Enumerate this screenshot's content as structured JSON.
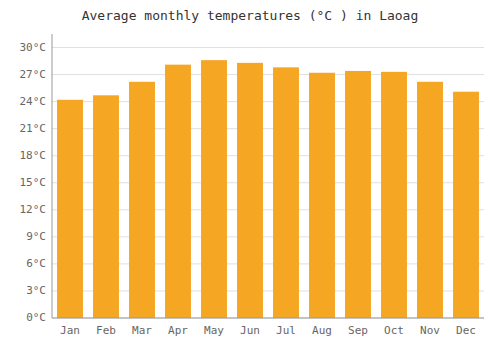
{
  "chart_data": {
    "type": "bar",
    "title": "Average monthly temperatures (°C ) in Laoag",
    "categories": [
      "Jan",
      "Feb",
      "Mar",
      "Apr",
      "May",
      "Jun",
      "Jul",
      "Aug",
      "Sep",
      "Oct",
      "Nov",
      "Dec"
    ],
    "values": [
      24.2,
      24.7,
      26.2,
      28.1,
      28.6,
      28.3,
      27.8,
      27.2,
      27.4,
      27.3,
      26.2,
      25.1
    ],
    "color": "#F5A623",
    "ylim": [
      0,
      31.5
    ],
    "yticks": [
      {
        "value": 0,
        "label": "0°C"
      },
      {
        "value": 3,
        "label": "3°C"
      },
      {
        "value": 6,
        "label": "6°C"
      },
      {
        "value": 9,
        "label": "9°C"
      },
      {
        "value": 12,
        "label": "12°C"
      },
      {
        "value": 15,
        "label": "15°C"
      },
      {
        "value": 18,
        "label": "18°C"
      },
      {
        "value": 21,
        "label": "21°C"
      },
      {
        "value": 24,
        "label": "24°C"
      },
      {
        "value": 27,
        "label": "27°C"
      },
      {
        "value": 30,
        "label": "30°C"
      }
    ],
    "grid": true
  }
}
